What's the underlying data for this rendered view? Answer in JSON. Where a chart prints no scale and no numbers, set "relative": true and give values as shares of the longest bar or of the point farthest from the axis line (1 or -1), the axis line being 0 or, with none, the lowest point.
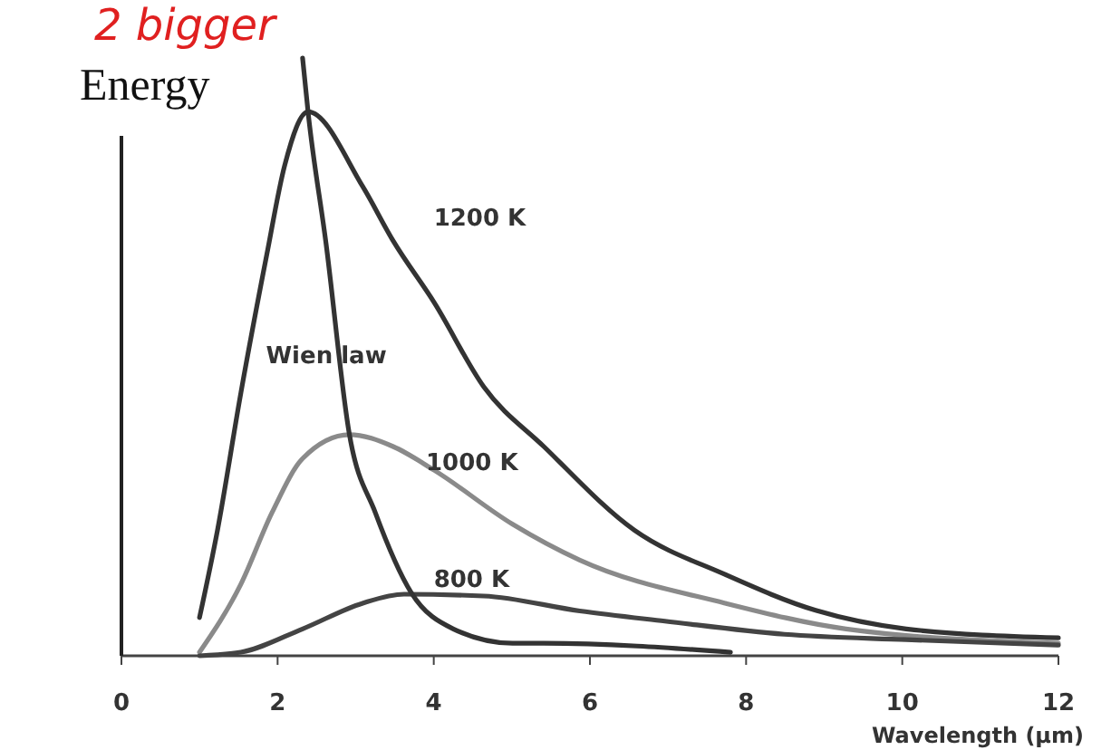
{
  "chart_data": {
    "type": "line",
    "relative": true,
    "ylabel": "Energy",
    "xlabel": "Wavelength (µm)",
    "xlim": [
      0,
      12
    ],
    "xticks": [
      0,
      2,
      4,
      6,
      8,
      10,
      12
    ],
    "grid": false,
    "marker": "none",
    "line_style": "solid",
    "annotations": [
      "2 bigger"
    ],
    "series": [
      {
        "name": "1200 K",
        "color": "#333333",
        "x": [
          1.0,
          1.23,
          1.53,
          1.86,
          2.09,
          2.39,
          3.09,
          3.48,
          4.01,
          4.64,
          5.41,
          6.57,
          7.73,
          8.89,
          10.05,
          12.0
        ],
        "values": [
          0.064,
          0.21,
          0.44,
          0.67,
          0.82,
          0.91,
          0.785,
          0.694,
          0.59,
          0.45,
          0.35,
          0.21,
          0.136,
          0.076,
          0.045,
          0.03
        ]
      },
      {
        "name": "1000 K",
        "color": "#8a8a8a",
        "x": [
          1.0,
          1.53,
          1.93,
          2.32,
          2.92,
          3.48,
          4.01,
          5.01,
          5.87,
          7.73,
          9.28,
          12.0
        ],
        "values": [
          0.006,
          0.12,
          0.24,
          0.33,
          0.37,
          0.35,
          0.31,
          0.22,
          0.16,
          0.088,
          0.045,
          0.021
        ]
      },
      {
        "name": "800 K",
        "color": "#444444",
        "x": [
          1.0,
          1.53,
          2.32,
          3.09,
          3.62,
          4.64,
          5.87,
          6.96,
          8.49,
          10.05,
          12.0
        ],
        "values": [
          0.0,
          0.006,
          0.045,
          0.088,
          0.103,
          0.1,
          0.075,
          0.058,
          0.036,
          0.027,
          0.018
        ]
      },
      {
        "name": "Wien law",
        "color": "#333333",
        "x": [
          2.32,
          2.39,
          2.62,
          2.92,
          3.25,
          3.71,
          4.25,
          5.01,
          5.41,
          7.8
        ],
        "values": [
          1.0,
          0.91,
          0.69,
          0.37,
          0.24,
          0.106,
          0.045,
          0.021,
          0.021,
          0.006
        ]
      }
    ]
  }
}
